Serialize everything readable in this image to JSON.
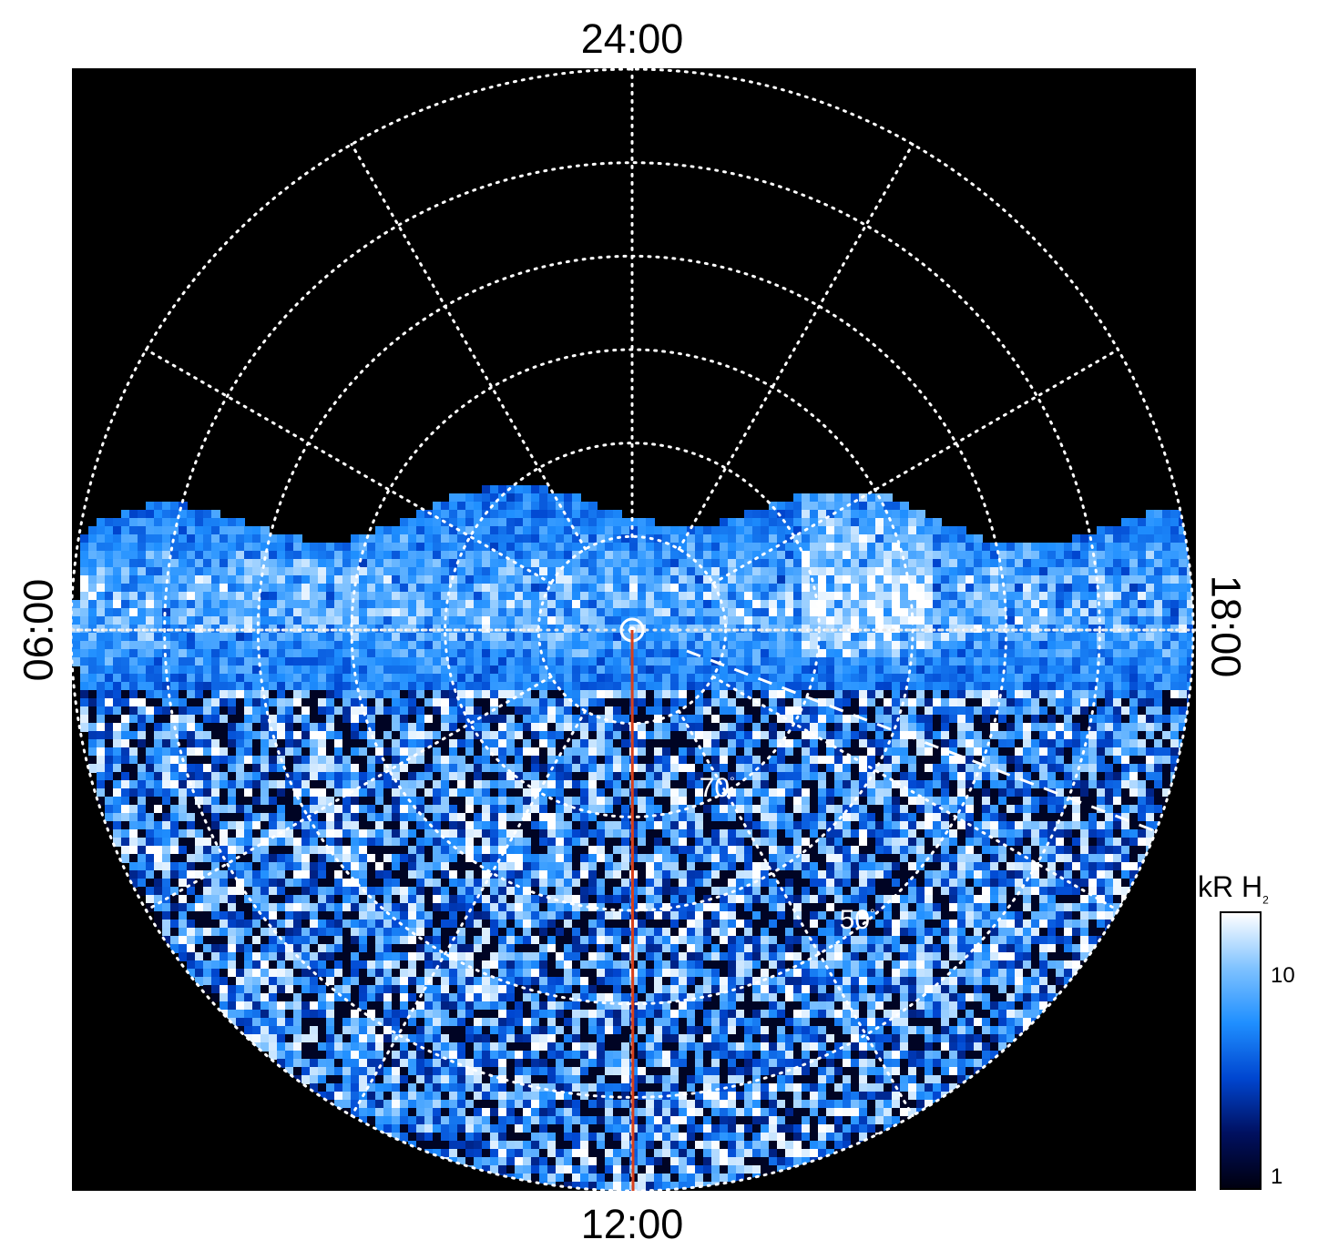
{
  "chart_data": {
    "type": "heatmap",
    "projection": "polar",
    "mlt_labels": {
      "top": "24:00",
      "bottom": "12:00",
      "left": "06:00",
      "right": "18:00"
    },
    "latitude_labels": [
      {
        "text": "70",
        "value": 70
      },
      {
        "text": "50",
        "value": 50
      }
    ],
    "degree_symbol": "°",
    "colorbar": {
      "title": "kR H",
      "title_subscript": "2",
      "scale": "log",
      "range": [
        1,
        20
      ],
      "ticks": [
        {
          "value": 10,
          "label": "10"
        },
        {
          "value": 1,
          "label": "1"
        }
      ],
      "colors": [
        "#000010",
        "#001060",
        "#0046d0",
        "#1f8fff",
        "#7fc2ff",
        "#ffffff"
      ]
    },
    "grid": true,
    "grid_style": "dotted",
    "colors": {
      "background": "#000000",
      "grid": "#ffffff",
      "meridian_line": "#d8401a"
    }
  }
}
